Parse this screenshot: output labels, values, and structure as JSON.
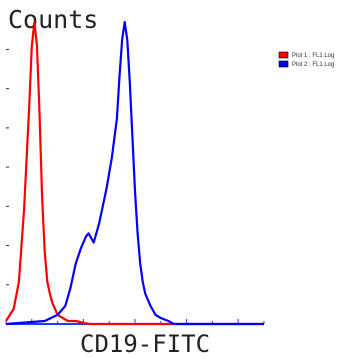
{
  "chart_data": {
    "type": "line",
    "title": "",
    "ylabel": "Counts",
    "xlabel": "CD19-FITC",
    "xscale": "log",
    "xlim": [
      0,
      100
    ],
    "ylim": [
      0,
      100
    ],
    "grid": false,
    "legend_position": "top-right",
    "series": [
      {
        "name": "Plot 1 : FL1 Log",
        "color": "#ff0000",
        "x": [
          0,
          3,
          5,
          7,
          9,
          10,
          11,
          12,
          13,
          14,
          15,
          16,
          17,
          18,
          19,
          20,
          22,
          24,
          27,
          32,
          40,
          100
        ],
        "y": [
          1,
          5,
          14,
          38,
          72,
          92,
          100,
          92,
          70,
          42,
          24,
          14,
          10,
          7,
          5,
          3,
          2,
          1,
          1,
          0,
          0,
          0
        ]
      },
      {
        "name": "Plot 2 : FL1 Log",
        "color": "#0000ff",
        "x": [
          0,
          15,
          20,
          23,
          25,
          27,
          29,
          31,
          32,
          34,
          36,
          37,
          39,
          41,
          43,
          44,
          45,
          46,
          47,
          48,
          49,
          50,
          51,
          52,
          53,
          54,
          56,
          58,
          60,
          63,
          65,
          70,
          100
        ],
        "y": [
          0,
          1,
          3,
          6,
          12,
          20,
          25,
          29,
          30,
          27,
          33,
          37,
          45,
          55,
          68,
          82,
          94,
          100,
          94,
          80,
          62,
          44,
          30,
          20,
          14,
          10,
          6,
          3,
          2,
          1,
          0,
          0,
          0
        ]
      }
    ]
  }
}
